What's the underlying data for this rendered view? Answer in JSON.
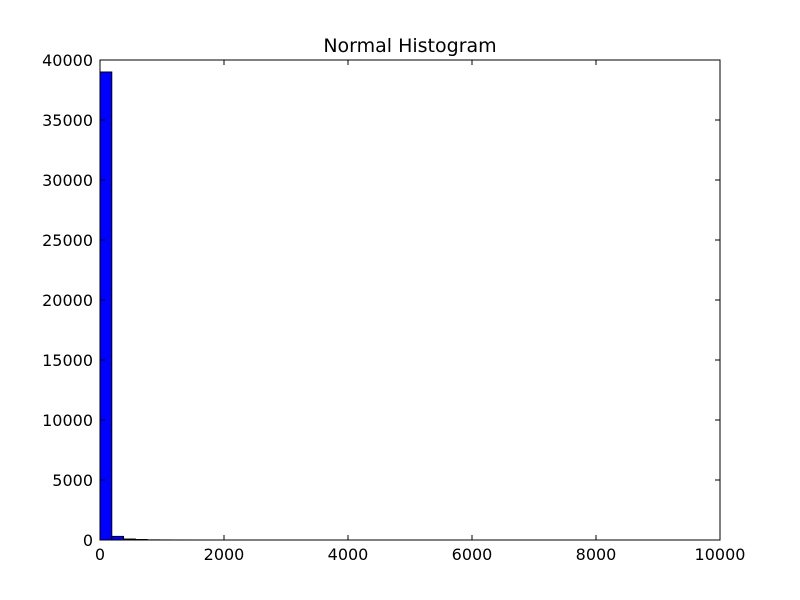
{
  "chart_data": {
    "type": "bar",
    "title": "Normal Histogram",
    "xlabel": "",
    "ylabel": "",
    "xlim": [
      0,
      10000
    ],
    "ylim": [
      0,
      40000
    ],
    "x_ticks": [
      0,
      2000,
      4000,
      6000,
      8000,
      10000
    ],
    "y_ticks": [
      0,
      5000,
      10000,
      15000,
      20000,
      25000,
      30000,
      35000,
      40000
    ],
    "grid": false,
    "legend": "none",
    "bar_color": "#0000ff",
    "edge_color": "#000000",
    "bins": [
      {
        "start": 0,
        "end": 190,
        "count": 39000
      },
      {
        "start": 190,
        "end": 380,
        "count": 300
      },
      {
        "start": 380,
        "end": 570,
        "count": 80
      },
      {
        "start": 570,
        "end": 760,
        "count": 40
      },
      {
        "start": 760,
        "end": 950,
        "count": 10
      },
      {
        "start": 950,
        "end": 1140,
        "count": 5
      },
      {
        "start": 1140,
        "end": 1330,
        "count": 2
      },
      {
        "start": 1330,
        "end": 1520,
        "count": 1
      }
    ]
  }
}
